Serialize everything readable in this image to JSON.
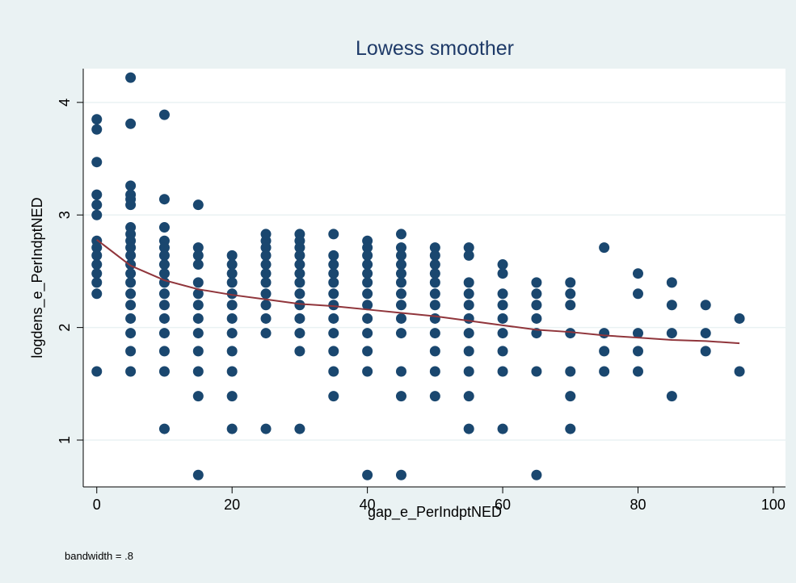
{
  "chart_data": {
    "type": "scatter",
    "title": "Lowess smoother",
    "x_label": "gap_e_PerIndptNED",
    "y_label": "logdens_e_PerIndptNED",
    "note": "bandwidth = .8",
    "xlim": [
      -2,
      101.8
    ],
    "ylim": [
      0.584,
      4.3
    ],
    "xticks": [
      0,
      20,
      40,
      60,
      80,
      100
    ],
    "yticks": [
      1,
      2,
      3,
      4
    ],
    "grid": true,
    "series": [
      {
        "type": "scatter",
        "color": "#1a476f",
        "x": [
          0,
          0,
          0,
          0,
          0,
          0,
          0,
          0,
          0,
          0,
          0,
          0,
          0,
          0,
          5,
          5,
          5,
          5,
          5,
          5,
          5,
          5,
          5,
          5,
          5,
          5,
          5,
          5,
          5,
          5,
          5,
          5,
          5,
          5,
          10,
          10,
          10,
          10,
          10,
          10,
          10,
          10,
          10,
          10,
          10,
          10,
          10,
          10,
          10,
          10,
          15,
          15,
          15,
          15,
          15,
          15,
          15,
          15,
          15,
          15,
          15,
          15,
          15,
          20,
          20,
          20,
          20,
          20,
          20,
          20,
          20,
          20,
          20,
          20,
          20,
          25,
          25,
          25,
          25,
          25,
          25,
          25,
          25,
          25,
          25,
          25,
          25,
          30,
          30,
          30,
          30,
          30,
          30,
          30,
          30,
          30,
          30,
          30,
          30,
          30,
          35,
          35,
          35,
          35,
          35,
          35,
          35,
          35,
          35,
          35,
          35,
          35,
          40,
          40,
          40,
          40,
          40,
          40,
          40,
          40,
          40,
          40,
          40,
          40,
          40,
          45,
          45,
          45,
          45,
          45,
          45,
          45,
          45,
          45,
          45,
          45,
          45,
          45,
          50,
          50,
          50,
          50,
          50,
          50,
          50,
          50,
          50,
          50,
          50,
          50,
          55,
          55,
          55,
          55,
          55,
          55,
          55,
          55,
          55,
          55,
          55,
          60,
          60,
          60,
          60,
          60,
          60,
          60,
          60,
          60,
          65,
          65,
          65,
          65,
          65,
          65,
          65,
          70,
          70,
          70,
          70,
          70,
          70,
          70,
          75,
          75,
          75,
          75,
          80,
          80,
          80,
          80,
          80,
          85,
          85,
          85,
          85,
          90,
          90,
          90,
          95,
          95
        ],
        "values": [
          3.85,
          3.76,
          3.47,
          3.18,
          3.09,
          3.0,
          2.77,
          2.71,
          2.64,
          2.56,
          2.48,
          2.4,
          2.3,
          1.61,
          4.22,
          3.81,
          3.26,
          3.18,
          3.14,
          3.09,
          2.89,
          2.83,
          2.77,
          2.71,
          2.64,
          2.56,
          2.48,
          2.4,
          2.3,
          2.2,
          2.08,
          1.95,
          1.79,
          1.61,
          3.89,
          3.14,
          2.89,
          2.77,
          2.71,
          2.64,
          2.56,
          2.48,
          2.4,
          2.3,
          2.2,
          2.08,
          1.95,
          1.79,
          1.61,
          1.1,
          3.09,
          2.71,
          2.64,
          2.56,
          2.4,
          2.3,
          2.2,
          2.08,
          1.95,
          1.79,
          1.61,
          1.39,
          0.69,
          2.64,
          2.56,
          2.48,
          2.4,
          2.3,
          2.2,
          2.08,
          1.95,
          1.79,
          1.61,
          1.39,
          1.1,
          2.83,
          2.77,
          2.71,
          2.64,
          2.56,
          2.48,
          2.4,
          2.3,
          2.2,
          2.08,
          1.95,
          1.1,
          2.83,
          2.77,
          2.71,
          2.64,
          2.56,
          2.48,
          2.4,
          2.3,
          2.2,
          2.08,
          1.95,
          1.79,
          1.1,
          2.83,
          2.64,
          2.56,
          2.48,
          2.4,
          2.3,
          2.2,
          2.08,
          1.95,
          1.79,
          1.61,
          1.39,
          2.77,
          2.71,
          2.64,
          2.56,
          2.48,
          2.4,
          2.3,
          2.2,
          2.08,
          1.95,
          1.79,
          1.61,
          0.69,
          2.83,
          2.71,
          2.64,
          2.56,
          2.48,
          2.4,
          2.3,
          2.2,
          2.08,
          1.95,
          1.61,
          1.39,
          0.69,
          2.71,
          2.64,
          2.56,
          2.48,
          2.4,
          2.3,
          2.2,
          2.08,
          1.95,
          1.79,
          1.61,
          1.39,
          2.71,
          2.64,
          2.4,
          2.3,
          2.2,
          2.08,
          1.95,
          1.79,
          1.61,
          1.39,
          1.1,
          2.56,
          2.48,
          2.3,
          2.2,
          2.08,
          1.95,
          1.79,
          1.61,
          1.1,
          2.4,
          2.3,
          2.2,
          2.08,
          1.95,
          1.61,
          0.69,
          2.4,
          2.3,
          2.2,
          1.95,
          1.61,
          1.39,
          1.1,
          2.71,
          1.95,
          1.79,
          1.61,
          2.48,
          2.3,
          1.95,
          1.79,
          1.61,
          2.4,
          2.2,
          1.95,
          1.39,
          2.2,
          1.95,
          1.79,
          2.08,
          1.61
        ]
      },
      {
        "type": "line",
        "color": "#90353b",
        "x": [
          0,
          5,
          10,
          15,
          20,
          25,
          30,
          35,
          40,
          45,
          50,
          55,
          60,
          65,
          70,
          75,
          80,
          85,
          90,
          95
        ],
        "values": [
          2.78,
          2.55,
          2.42,
          2.34,
          2.29,
          2.25,
          2.21,
          2.19,
          2.16,
          2.13,
          2.1,
          2.06,
          2.02,
          1.98,
          1.96,
          1.93,
          1.91,
          1.89,
          1.88,
          1.86
        ]
      }
    ]
  }
}
